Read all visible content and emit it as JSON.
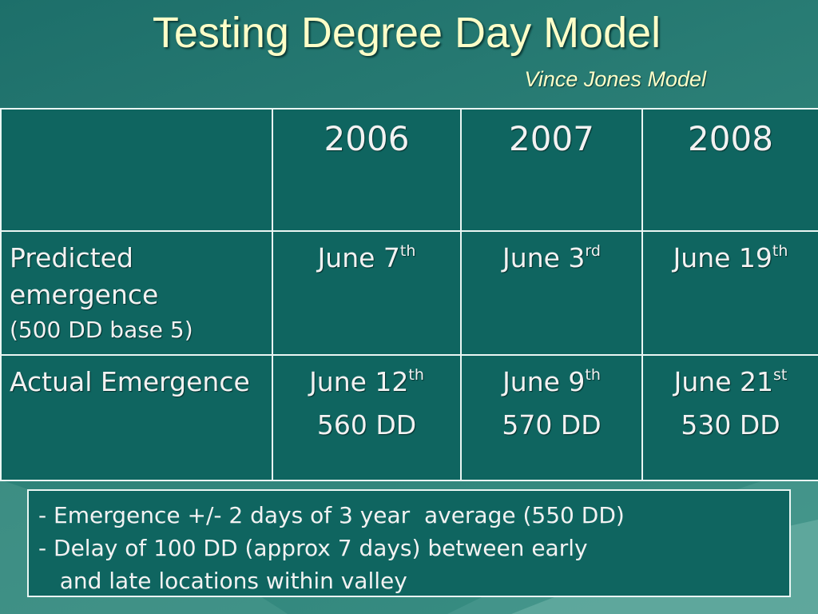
{
  "title": "Testing Degree Day Model",
  "subtitle": "Vince Jones Model",
  "table": {
    "header": [
      "",
      "2006",
      "2007",
      "2008"
    ],
    "rows": [
      {
        "label": "Predicted emergence",
        "sublabel": "(500 DD base 5)",
        "cells": [
          {
            "date": "June 7",
            "suffix": "th",
            "dd": ""
          },
          {
            "date": "June 3",
            "suffix": "rd",
            "dd": ""
          },
          {
            "date": "June 19",
            "suffix": "th",
            "dd": ""
          }
        ]
      },
      {
        "label": "Actual Emergence",
        "sublabel": "",
        "cells": [
          {
            "date": "June 12",
            "suffix": "th",
            "dd": "560 DD"
          },
          {
            "date": "June 9",
            "suffix": "th",
            "dd": "570 DD"
          },
          {
            "date": "June 21",
            "suffix": "st",
            "dd": "530 DD"
          }
        ]
      }
    ]
  },
  "notes": [
    "- Emergence +/- 2 days of 3 year  average (550 DD)",
    "- Delay of 100 DD (approx 7 days) between early",
    "   and late locations within valley"
  ],
  "colors": {
    "background": "#2a7f78",
    "table_fill": "#0f6560",
    "title_text": "#ffffc8",
    "body_text": "#f2f2f2",
    "border": "#eaf6f3"
  }
}
